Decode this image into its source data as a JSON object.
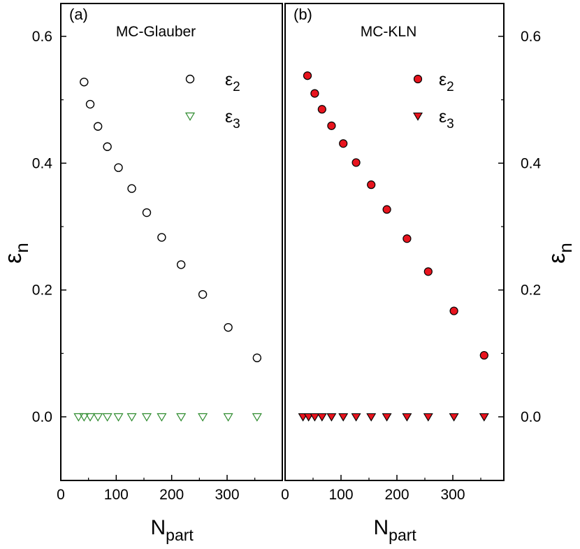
{
  "chart_data": [
    {
      "type": "scatter",
      "panel_label": "(a)",
      "model": "MC-Glauber",
      "xlabel": "N",
      "xlabel_sub": "part",
      "ylabel": "ε",
      "ylabel_sub": "n",
      "xlim": [
        0,
        400
      ],
      "ylim": [
        -0.1,
        0.65
      ],
      "xticks": [
        0,
        100,
        200,
        300
      ],
      "xtick_labels": [
        "0",
        "100",
        "200",
        "300"
      ],
      "yticks": [
        0.0,
        0.2,
        0.4,
        0.6
      ],
      "ytick_labels": [
        "0.0",
        "0.2",
        "0.4",
        "0.6"
      ],
      "legend_position": "top-right",
      "series": [
        {
          "name": "ε2",
          "symbol": "ε",
          "subscript": "2",
          "marker": "circle-open",
          "color": "#000000",
          "x": [
            42,
            53,
            67,
            84,
            104,
            128,
            155,
            182,
            217,
            256,
            302,
            354
          ],
          "y": [
            0.528,
            0.493,
            0.458,
            0.426,
            0.393,
            0.36,
            0.322,
            0.283,
            0.24,
            0.193,
            0.141,
            0.093
          ]
        },
        {
          "name": "ε3",
          "symbol": "ε",
          "subscript": "3",
          "marker": "triangle-down-open",
          "color": "#2e8b2e",
          "x": [
            32,
            42,
            53,
            67,
            84,
            104,
            128,
            155,
            182,
            217,
            256,
            302,
            354
          ],
          "y": [
            0,
            0,
            0,
            0,
            0,
            0,
            0,
            0,
            0,
            0,
            0,
            0,
            0
          ]
        }
      ]
    },
    {
      "type": "scatter",
      "panel_label": "(b)",
      "model": "MC-KLN",
      "xlabel": "N",
      "xlabel_sub": "part",
      "ylabel": "ε",
      "ylabel_sub": "n",
      "xlim": [
        0,
        400
      ],
      "ylim": [
        -0.1,
        0.65
      ],
      "xticks": [
        0,
        100,
        200,
        300
      ],
      "xtick_labels": [
        "0",
        "100",
        "200",
        "300"
      ],
      "yticks": [
        0.0,
        0.2,
        0.4,
        0.6
      ],
      "ytick_labels": [
        "0.0",
        "0.2",
        "0.4",
        "0.6"
      ],
      "legend_position": "top-right",
      "series": [
        {
          "name": "ε2",
          "symbol": "ε",
          "subscript": "2",
          "marker": "circle-filled",
          "color": "#e8141e",
          "x": [
            40,
            53,
            66,
            83,
            104,
            127,
            154,
            182,
            218,
            256,
            302,
            356
          ],
          "y": [
            0.538,
            0.51,
            0.485,
            0.459,
            0.431,
            0.401,
            0.366,
            0.327,
            0.281,
            0.229,
            0.167,
            0.097
          ]
        },
        {
          "name": "ε3",
          "symbol": "ε",
          "subscript": "3",
          "marker": "triangle-down-filled",
          "color": "#e8141e",
          "x": [
            32,
            42,
            53,
            66,
            83,
            104,
            127,
            154,
            182,
            218,
            256,
            302,
            356
          ],
          "y": [
            0,
            0,
            0,
            0,
            0,
            0,
            0,
            0,
            0,
            0,
            0,
            0,
            0
          ]
        }
      ]
    }
  ]
}
